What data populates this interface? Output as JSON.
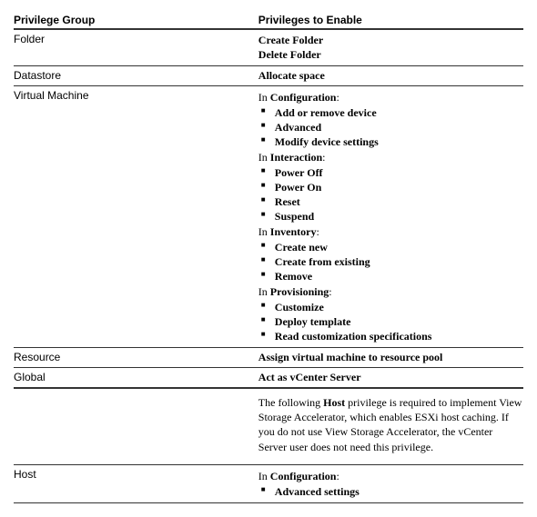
{
  "headers": {
    "left": "Privilege Group",
    "right": "Privileges to Enable"
  },
  "rows": {
    "folder": {
      "group": "Folder",
      "privs": [
        "Create Folder",
        "Delete Folder"
      ]
    },
    "datastore": {
      "group": "Datastore",
      "priv": "Allocate space"
    },
    "vm": {
      "group": "Virtual Machine",
      "cats": {
        "configuration": {
          "in": "In ",
          "name": "Configuration",
          "colon": ":",
          "items": [
            "Add or remove device",
            "Advanced",
            "Modify device settings"
          ]
        },
        "interaction": {
          "in": "In ",
          "name": "Interaction",
          "colon": ":",
          "items": [
            "Power Off",
            "Power On",
            "Reset",
            "Suspend"
          ]
        },
        "inventory": {
          "in": "In ",
          "name": "Inventory",
          "colon": ":",
          "items": [
            "Create new",
            "Create from existing",
            "Remove"
          ]
        },
        "provisioning": {
          "in": "In ",
          "name": "Provisioning",
          "colon": ":",
          "items": [
            "Customize",
            "Deploy template",
            "Read customization specifications"
          ]
        }
      }
    },
    "resource": {
      "group": "Resource",
      "priv": "Assign virtual machine to resource pool"
    },
    "global": {
      "group": "Global",
      "priv": "Act as vCenter Server"
    },
    "hostnote": {
      "pre": "The following ",
      "hostWord": "Host",
      "post": " privilege is required to implement View Storage Accelerator, which enables ESXi host caching. If you do not use View Storage Accelerator, the vCenter Server user does not need this privilege."
    },
    "host": {
      "group": "Host",
      "cat": {
        "in": "In ",
        "name": "Configuration",
        "colon": ":",
        "items": [
          "Advanced settings"
        ]
      }
    }
  },
  "style": {
    "colors": {
      "text": "#000000",
      "border": "#333333",
      "background": "#ffffff"
    },
    "fonts": {
      "header": "Arial",
      "body": "Georgia"
    },
    "fontsize_base": 12
  }
}
